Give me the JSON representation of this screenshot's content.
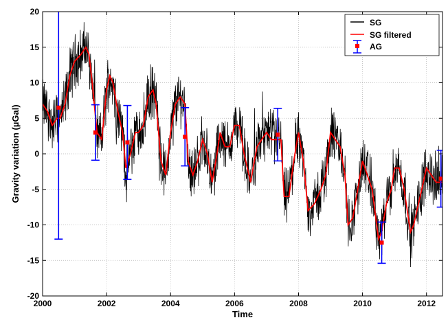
{
  "chart_data": {
    "type": "line",
    "xlabel": "Time",
    "ylabel": "Gravity variation (µGal)",
    "xlim": [
      2000,
      2012.5
    ],
    "ylim": [
      -20,
      20
    ],
    "x_ticks": [
      2000,
      2002,
      2004,
      2006,
      2008,
      2010,
      2012
    ],
    "y_ticks": [
      -20,
      -15,
      -10,
      -5,
      0,
      5,
      10,
      15,
      20
    ],
    "grid": true,
    "legend_position": "top-right",
    "colors": {
      "sg": "#000000",
      "sg_filtered": "#ff0000",
      "ag": "#0000ff",
      "ag_marker": "#ff0000"
    },
    "legend": [
      "SG",
      "SG filtered",
      "AG"
    ],
    "series": [
      {
        "name": "SG filtered",
        "x": [
          2000.0,
          2000.15,
          2000.3,
          2000.45,
          2000.55,
          2000.7,
          2000.85,
          2001.0,
          2001.2,
          2001.35,
          2001.45,
          2001.55,
          2001.7,
          2001.85,
          2002.0,
          2002.1,
          2002.2,
          2002.35,
          2002.5,
          2002.6,
          2002.75,
          2002.9,
          2003.0,
          2003.15,
          2003.3,
          2003.45,
          2003.55,
          2003.7,
          2003.85,
          2004.0,
          2004.15,
          2004.3,
          2004.45,
          2004.55,
          2004.7,
          2004.85,
          2005.0,
          2005.15,
          2005.3,
          2005.45,
          2005.55,
          2005.7,
          2005.85,
          2006.0,
          2006.15,
          2006.3,
          2006.5,
          2006.7,
          2006.85,
          2007.0,
          2007.15,
          2007.3,
          2007.45,
          2007.55,
          2007.7,
          2007.85,
          2008.0,
          2008.15,
          2008.3,
          2008.5,
          2008.7,
          2008.85,
          2009.0,
          2009.15,
          2009.3,
          2009.45,
          2009.55,
          2009.7,
          2009.85,
          2010.0,
          2010.15,
          2010.3,
          2010.5,
          2010.6,
          2010.75,
          2010.9,
          2011.0,
          2011.15,
          2011.3,
          2011.5,
          2011.6,
          2011.75,
          2011.9,
          2012.0,
          2012.15,
          2012.3,
          2012.5
        ],
        "y": [
          7,
          6,
          4,
          5,
          5,
          7,
          11,
          13,
          14,
          15,
          14,
          10,
          3,
          2,
          9,
          11,
          10,
          6,
          3,
          -2,
          0,
          3,
          3,
          4,
          8,
          9,
          7,
          -1,
          -3,
          3,
          7,
          8,
          7,
          -1,
          -3,
          -1,
          2,
          0,
          -4,
          0,
          3,
          1,
          1,
          4,
          4,
          0,
          -4,
          1,
          2,
          3,
          2,
          2,
          2,
          -6,
          -6,
          -1,
          3,
          -1,
          -8,
          -7,
          -5,
          -3,
          3,
          2,
          1,
          -3,
          -10,
          -9,
          -5,
          -1,
          -3,
          -5,
          -12,
          -11,
          -7,
          -5,
          -2,
          -2,
          -5,
          -11,
          -10,
          -7,
          -4,
          -2,
          -3,
          -4,
          -4
        ]
      },
      {
        "name": "AG",
        "points": [
          {
            "x": 2000.5,
            "y": 6.5,
            "err": 18.5
          },
          {
            "x": 2001.65,
            "y": 3.0,
            "err": 3.9
          },
          {
            "x": 2002.65,
            "y": 1.6,
            "err": 5.2
          },
          {
            "x": 2004.45,
            "y": 2.4,
            "err": 4.1
          },
          {
            "x": 2007.35,
            "y": 2.7,
            "err": 3.7
          },
          {
            "x": 2010.6,
            "y": -12.5,
            "err": 2.9
          },
          {
            "x": 2012.45,
            "y": -3.5,
            "err": 4.0
          }
        ]
      }
    ]
  }
}
